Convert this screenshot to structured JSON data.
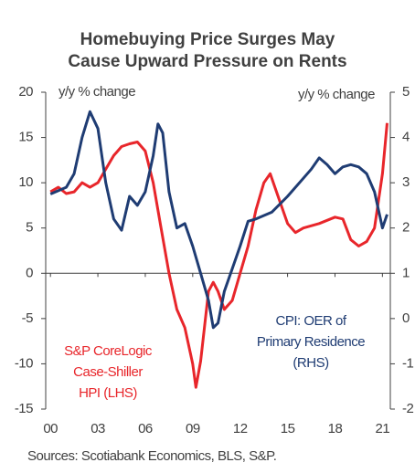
{
  "chart_data": {
    "type": "line",
    "title": [
      "Homebuying  Price Surges May",
      "Cause Upward Pressure on Rents"
    ],
    "y_axis_label": "y/y % change",
    "y2_axis_label": "y/y % change",
    "source": "Sources: Scotiabank Economics, BLS, S&P.",
    "xlim": [
      1999.7,
      2021.5
    ],
    "xticks": [
      {
        "value": 2000,
        "label": "00"
      },
      {
        "value": 2003,
        "label": "03"
      },
      {
        "value": 2006,
        "label": "06"
      },
      {
        "value": 2009,
        "label": "09"
      },
      {
        "value": 2012,
        "label": "12"
      },
      {
        "value": 2015,
        "label": "15"
      },
      {
        "value": 2018,
        "label": "18"
      },
      {
        "value": 2021,
        "label": "21"
      }
    ],
    "ylim": [
      -15,
      20
    ],
    "yticks": [
      20,
      15,
      10,
      5,
      0,
      -5,
      -10,
      -15
    ],
    "y2lim": [
      -2,
      5
    ],
    "y2ticks": [
      5,
      4,
      3,
      2,
      1,
      0,
      -1,
      -2
    ],
    "series": [
      {
        "name": [
          "S&P CoreLogic",
          "Case-Shiller",
          "HPI (LHS)"
        ],
        "color": "#e8262b",
        "axis": "y",
        "x": [
          2000,
          2000.5,
          2001,
          2001.5,
          2002,
          2002.5,
          2003,
          2003.5,
          2004,
          2004.5,
          2005,
          2005.5,
          2006,
          2006.5,
          2007,
          2007.5,
          2008,
          2008.5,
          2009,
          2009.2,
          2009.5,
          2010,
          2010.3,
          2010.6,
          2011,
          2011.5,
          2012,
          2012.5,
          2013,
          2013.5,
          2013.9,
          2014.3,
          2015,
          2015.5,
          2016,
          2017,
          2018,
          2018.5,
          2019,
          2019.5,
          2020,
          2020.5,
          2021,
          2021.3
        ],
        "values": [
          9,
          9.5,
          8.8,
          9,
          10,
          9.5,
          10,
          11.5,
          13,
          14,
          14.3,
          14.5,
          13.5,
          10,
          5,
          0,
          -4,
          -6,
          -10,
          -12.6,
          -9.7,
          -2,
          -1,
          -2,
          -4,
          -3,
          0,
          3,
          7,
          10,
          11,
          9,
          5.5,
          4.5,
          5,
          5.5,
          6.2,
          6,
          3.7,
          3,
          3.5,
          5,
          11,
          16.6
        ]
      },
      {
        "name": [
          "CPI: OER of",
          "Primary Residence",
          "(RHS)"
        ],
        "color": "#1f3c73",
        "axis": "y2",
        "x": [
          2000,
          2001,
          2001.5,
          2002,
          2002.5,
          2003,
          2003.5,
          2004,
          2004.5,
          2005,
          2005.5,
          2006,
          2006.5,
          2006.8,
          2007.1,
          2007.5,
          2008,
          2008.5,
          2009,
          2009.5,
          2010,
          2010.3,
          2010.6,
          2011,
          2011.5,
          2012,
          2012.5,
          2013,
          2014,
          2015,
          2016,
          2016.5,
          2017,
          2017.5,
          2018,
          2018.5,
          2019,
          2019.5,
          2020,
          2020.5,
          2021,
          2021.3
        ],
        "values": [
          2.75,
          2.9,
          3.2,
          4.0,
          4.57,
          4.2,
          3.0,
          2.2,
          1.95,
          2.7,
          2.5,
          2.8,
          3.6,
          4.3,
          4.1,
          2.8,
          2.0,
          2.1,
          1.6,
          1.0,
          0.4,
          -0.2,
          -0.1,
          0.6,
          1.1,
          1.6,
          2.15,
          2.2,
          2.35,
          2.7,
          3.1,
          3.3,
          3.55,
          3.4,
          3.2,
          3.35,
          3.4,
          3.35,
          3.2,
          2.8,
          2.0,
          2.3
        ]
      }
    ]
  }
}
